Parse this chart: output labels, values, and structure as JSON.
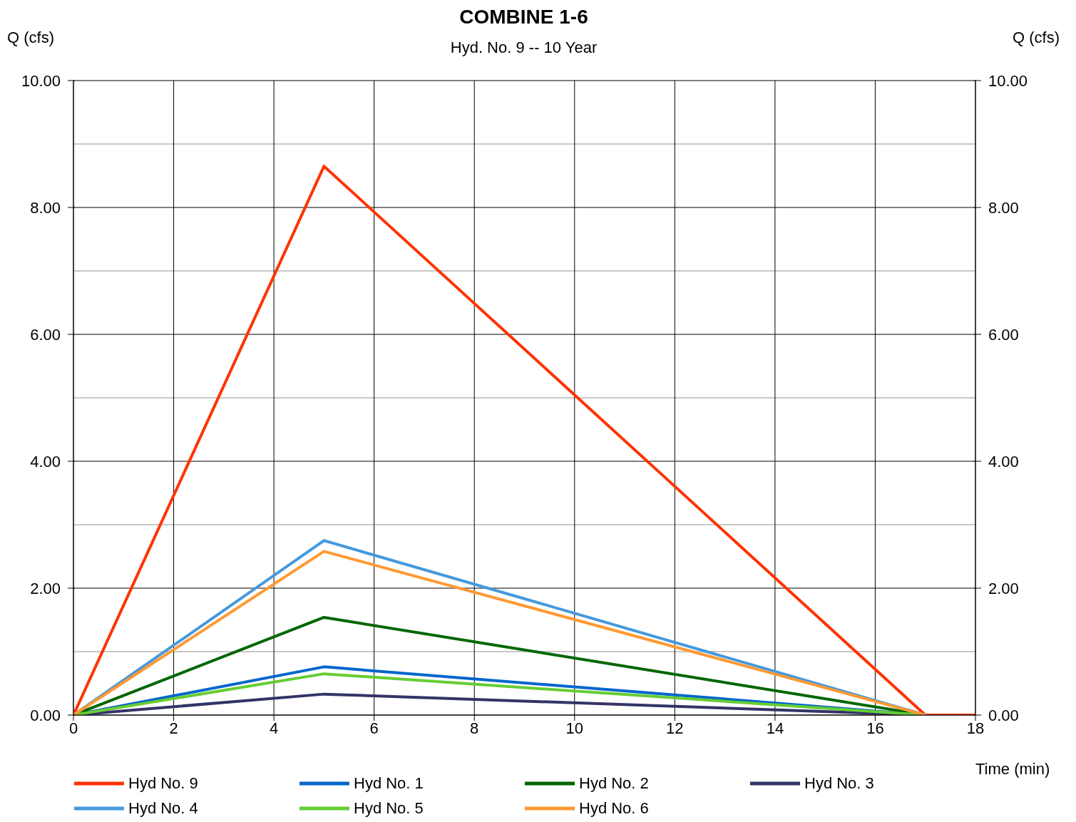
{
  "chart_data": {
    "type": "line",
    "title": "COMBINE 1-6",
    "subtitle": "Hyd. No. 9 -- 10 Year",
    "xlabel": "Time (min)",
    "ylabel": "Q (cfs)",
    "y2label": "Q (cfs)",
    "xlim": [
      0,
      18
    ],
    "xticks": [
      0,
      2,
      4,
      6,
      8,
      10,
      12,
      14,
      16,
      18
    ],
    "ylim": [
      0,
      10
    ],
    "yticks": [
      {
        "value": 0,
        "label": "0.00"
      },
      {
        "value": 1,
        "label": null
      },
      {
        "value": 2,
        "label": "2.00"
      },
      {
        "value": 3,
        "label": null
      },
      {
        "value": 4,
        "label": "4.00"
      },
      {
        "value": 5,
        "label": null
      },
      {
        "value": 6,
        "label": "6.00"
      },
      {
        "value": 7,
        "label": null
      },
      {
        "value": 8,
        "label": "8.00"
      },
      {
        "value": 9,
        "label": null
      },
      {
        "value": 10,
        "label": "10.00"
      }
    ],
    "y2lim": [
      0,
      10
    ],
    "y2ticks": [
      {
        "value": 0,
        "label": "0.00"
      },
      {
        "value": 2,
        "label": "2.00"
      },
      {
        "value": 4,
        "label": "4.00"
      },
      {
        "value": 6,
        "label": "6.00"
      },
      {
        "value": 8,
        "label": "8.00"
      },
      {
        "value": 10,
        "label": "10.00"
      }
    ],
    "grid": true,
    "legend": "bottom",
    "line_style": "solid",
    "series": [
      {
        "name": "Hyd No. 9",
        "color": "#ff3300",
        "x": [
          0,
          5,
          17,
          18
        ],
        "values": [
          0,
          8.65,
          0,
          0
        ]
      },
      {
        "name": "Hyd No. 1",
        "color": "#0066cc",
        "x": [
          0,
          5,
          17
        ],
        "values": [
          0,
          0.76,
          0
        ]
      },
      {
        "name": "Hyd No. 2",
        "color": "#006600",
        "x": [
          0,
          5,
          17
        ],
        "values": [
          0,
          1.54,
          0
        ]
      },
      {
        "name": "Hyd No. 3",
        "color": "#333366",
        "x": [
          0,
          5,
          17
        ],
        "values": [
          0,
          0.33,
          0
        ]
      },
      {
        "name": "Hyd No. 4",
        "color": "#4499dd",
        "x": [
          0,
          5,
          17
        ],
        "values": [
          0,
          2.75,
          0
        ]
      },
      {
        "name": "Hyd No. 5",
        "color": "#66cc33",
        "x": [
          0,
          5,
          17
        ],
        "values": [
          0,
          0.65,
          0
        ]
      },
      {
        "name": "Hyd No. 6",
        "color": "#ff9933",
        "x": [
          0,
          5,
          17
        ],
        "values": [
          0,
          2.58,
          0
        ]
      }
    ]
  }
}
